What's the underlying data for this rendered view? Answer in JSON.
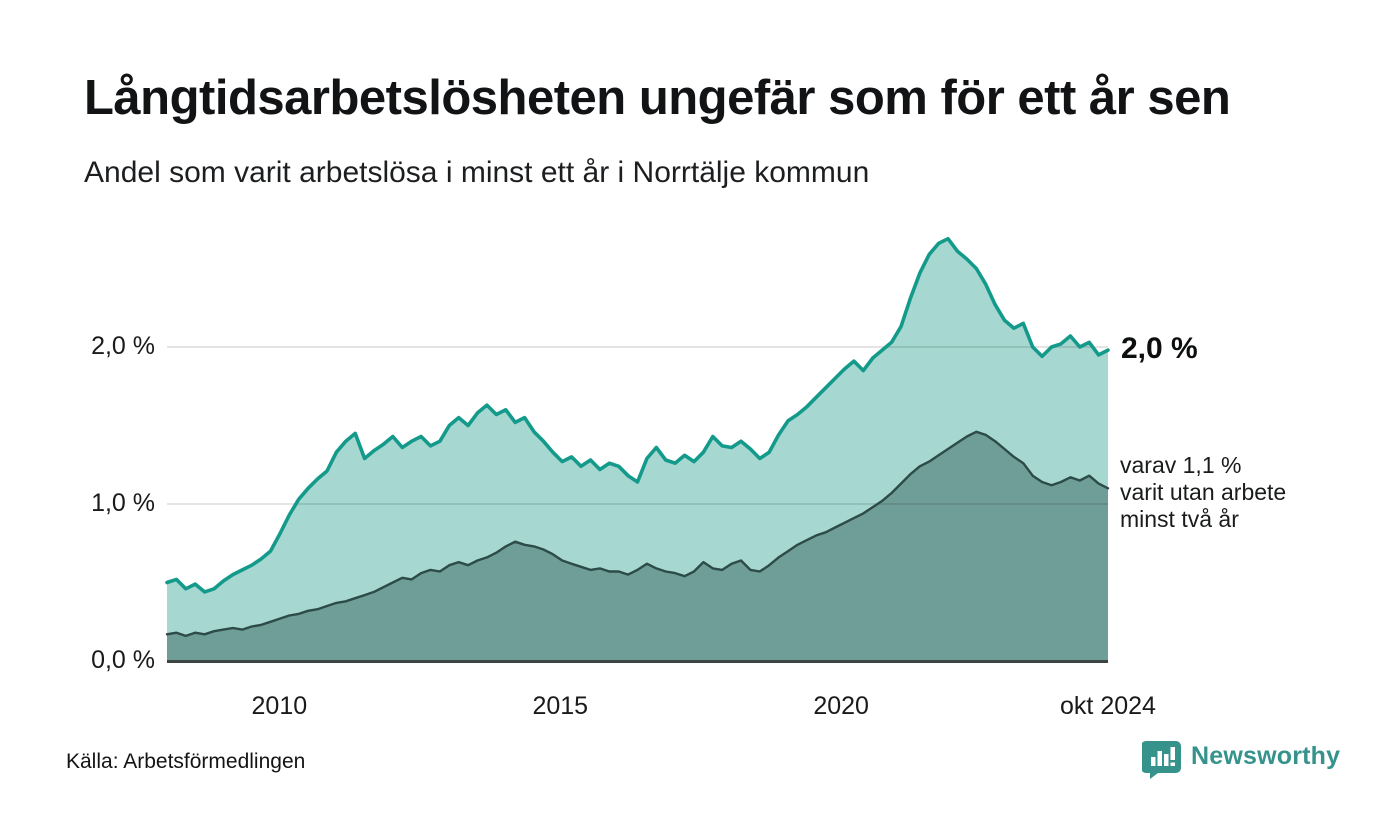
{
  "header": {
    "title": "Långtidsarbetslösheten ungefär som för ett år sen",
    "subtitle": "Andel som varit arbetslösa i minst ett år i Norrtälje kommun"
  },
  "annotations": {
    "end_value_total": "2,0 %",
    "sub_line1": "varav 1,1 %",
    "sub_line2": "varit utan arbete",
    "sub_line3": "minst två år"
  },
  "footer": {
    "source": "Källa: Arbetsförmedlingen",
    "brand_name": "Newsworthy"
  },
  "colors": {
    "total_line": "#149a8b",
    "total_fill": "#a6d7d0",
    "two_year_line": "#2d4b48",
    "two_year_fill": "#6f9e98",
    "axis_line": "#3d4543",
    "gridline": "rgba(0,0,0,0.14)",
    "brand_teal": "#35938b"
  },
  "chart_data": {
    "type": "area",
    "title": "Långtidsarbetslösheten ungefär som för ett år sen",
    "subtitle": "Andel som varit arbetslösa i minst ett år i Norrtälje kommun",
    "unit": "%",
    "x_start": 2008.0,
    "x_end": 2024.75,
    "x_end_label_period": "okt 2024",
    "ylim": [
      0,
      2.8
    ],
    "grid": "horizontal",
    "y_ticks": [
      {
        "value": 2.0,
        "label": "2,0 %"
      },
      {
        "value": 1.0,
        "label": "1,0 %"
      },
      {
        "value": 0.0,
        "label": "0,0 %"
      }
    ],
    "x_ticks": [
      {
        "year": 2010.0,
        "label": "2010"
      },
      {
        "year": 2015.0,
        "label": "2015"
      },
      {
        "year": 2020.0,
        "label": "2020"
      },
      {
        "year": 2024.75,
        "label": "okt 2024"
      }
    ],
    "series": [
      {
        "name": "Andel arbetslösa minst ett år",
        "end_value": 2.0,
        "end_value_label": "2,0 %",
        "values": [
          0.5,
          0.52,
          0.46,
          0.49,
          0.44,
          0.46,
          0.51,
          0.55,
          0.58,
          0.61,
          0.65,
          0.7,
          0.81,
          0.93,
          1.03,
          1.1,
          1.16,
          1.21,
          1.33,
          1.4,
          1.45,
          1.29,
          1.34,
          1.38,
          1.43,
          1.36,
          1.4,
          1.43,
          1.37,
          1.4,
          1.5,
          1.55,
          1.5,
          1.58,
          1.63,
          1.57,
          1.6,
          1.52,
          1.55,
          1.46,
          1.4,
          1.33,
          1.27,
          1.3,
          1.24,
          1.28,
          1.22,
          1.26,
          1.24,
          1.18,
          1.14,
          1.29,
          1.36,
          1.28,
          1.26,
          1.31,
          1.27,
          1.33,
          1.43,
          1.37,
          1.36,
          1.4,
          1.35,
          1.29,
          1.33,
          1.44,
          1.53,
          1.57,
          1.62,
          1.68,
          1.74,
          1.8,
          1.86,
          1.91,
          1.85,
          1.93,
          1.98,
          2.03,
          2.13,
          2.31,
          2.47,
          2.59,
          2.66,
          2.69,
          2.61,
          2.56,
          2.5,
          2.4,
          2.27,
          2.17,
          2.12,
          2.15,
          2.0,
          1.94,
          2.0,
          2.02,
          2.07,
          2.0,
          2.03,
          1.95,
          1.98
        ]
      },
      {
        "name": "Andel utan arbete minst två år",
        "end_value": 1.1,
        "end_value_label": "1,1 %",
        "values": [
          0.17,
          0.18,
          0.16,
          0.18,
          0.17,
          0.19,
          0.2,
          0.21,
          0.2,
          0.22,
          0.23,
          0.25,
          0.27,
          0.29,
          0.3,
          0.32,
          0.33,
          0.35,
          0.37,
          0.38,
          0.4,
          0.42,
          0.44,
          0.47,
          0.5,
          0.53,
          0.52,
          0.56,
          0.58,
          0.57,
          0.61,
          0.63,
          0.61,
          0.64,
          0.66,
          0.69,
          0.73,
          0.76,
          0.74,
          0.73,
          0.71,
          0.68,
          0.64,
          0.62,
          0.6,
          0.58,
          0.59,
          0.57,
          0.57,
          0.55,
          0.58,
          0.62,
          0.59,
          0.57,
          0.56,
          0.54,
          0.57,
          0.63,
          0.59,
          0.58,
          0.62,
          0.64,
          0.58,
          0.57,
          0.61,
          0.66,
          0.7,
          0.74,
          0.77,
          0.8,
          0.82,
          0.85,
          0.88,
          0.91,
          0.94,
          0.98,
          1.02,
          1.07,
          1.13,
          1.19,
          1.24,
          1.27,
          1.31,
          1.35,
          1.39,
          1.43,
          1.46,
          1.44,
          1.4,
          1.35,
          1.3,
          1.26,
          1.18,
          1.14,
          1.12,
          1.14,
          1.17,
          1.15,
          1.18,
          1.13,
          1.1
        ]
      }
    ]
  }
}
